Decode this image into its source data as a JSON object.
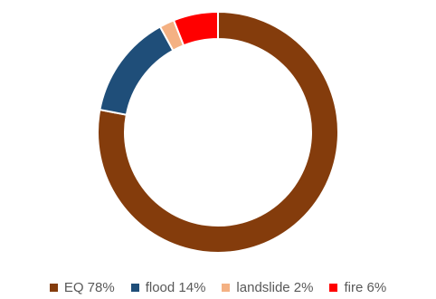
{
  "chart_data": {
    "type": "pie",
    "variant": "donut",
    "categories": [
      "EQ",
      "flood",
      "landslide",
      "fire"
    ],
    "values": [
      78,
      14,
      2,
      6
    ],
    "colors": [
      "#843C0C",
      "#1F4E79",
      "#F4B183",
      "#FF0000"
    ],
    "legend_labels": [
      "EQ 78%",
      "flood 14%",
      "landslide 2%",
      "fire 6%"
    ],
    "legend_placement": "bottom",
    "start_angle_deg": 0,
    "direction": "clockwise"
  }
}
